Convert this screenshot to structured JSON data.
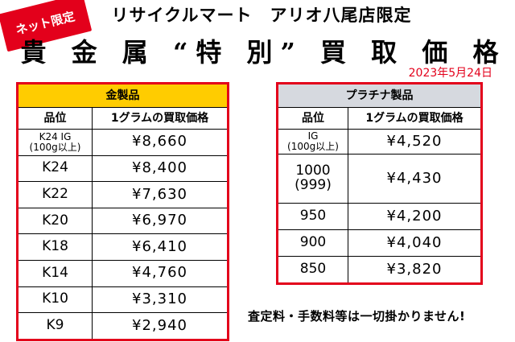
{
  "badge": "ネット限定",
  "store_name": "リサイクルマート　アリオ八尾店限定",
  "title": "貴 金 属 “特 別” 買 取 価 格",
  "date": "2023年5月24日",
  "gold_table": {
    "caption": "金製品",
    "col_grade": "品位",
    "col_price": "1グラムの買取価格",
    "rows": [
      {
        "grade": "K24 IG",
        "grade_sub": "(100g以上)",
        "price": "¥8,660"
      },
      {
        "grade": "K24",
        "price": "¥8,400"
      },
      {
        "grade": "K22",
        "price": "¥7,630"
      },
      {
        "grade": "K20",
        "price": "¥6,970"
      },
      {
        "grade": "K18",
        "price": "¥6,410"
      },
      {
        "grade": "K14",
        "price": "¥4,760"
      },
      {
        "grade": "K10",
        "price": "¥3,310"
      },
      {
        "grade": "K9",
        "price": "¥2,940"
      }
    ]
  },
  "platinum_table": {
    "caption": "プラチナ製品",
    "col_grade": "品位",
    "col_price": "1グラムの買取価格",
    "rows": [
      {
        "grade": "IG",
        "grade_sub": "(100g以上)",
        "price": "¥4,520"
      },
      {
        "grade": "1000",
        "grade_sub": "(999)",
        "price": "¥4,430"
      },
      {
        "grade": "950",
        "price": "¥4,200"
      },
      {
        "grade": "900",
        "price": "¥4,040"
      },
      {
        "grade": "850",
        "price": "¥3,820"
      }
    ]
  },
  "note": "査定料・手数料等は一切掛かりません!",
  "colors": {
    "accent_red": "#e3001b",
    "gold_header": "#ffcc00",
    "platinum_header": "#d6d9df"
  }
}
